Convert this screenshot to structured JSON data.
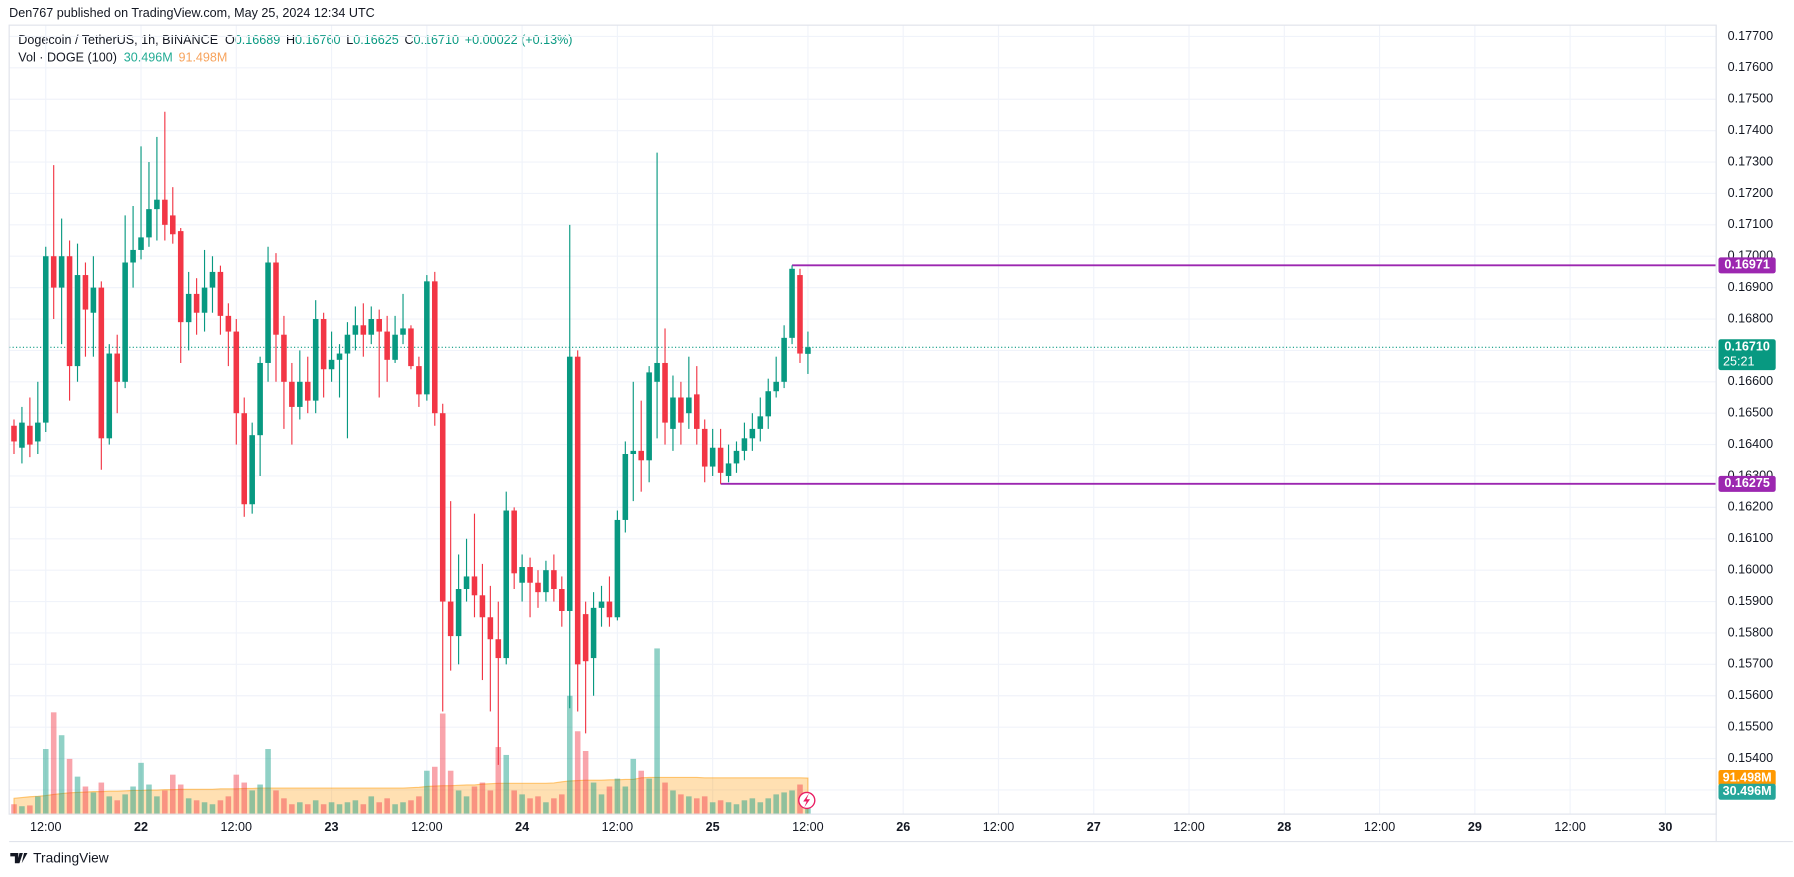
{
  "chart_data": {
    "type": "candlestick",
    "publisher": "Den767 published on TradingView.com, May 25, 2024 12:34 UTC",
    "symbol": "Dogecoin / TetherUS, 1h, BINANCE",
    "ohlc_legend": [
      {
        "label": "O",
        "value": "0.16689"
      },
      {
        "label": "H",
        "value": "0.16760"
      },
      {
        "label": "L",
        "value": "0.16625"
      },
      {
        "label": "C",
        "value": "0.16710"
      }
    ],
    "change": "+0.00022 (+0.13%)",
    "volume_title": "Vol · DOGE (100)",
    "volume_label": "30.496M",
    "volume_ma_label": "91.498M",
    "footer": "TradingView",
    "up_color": "#089981",
    "down_color": "#f23645",
    "level_color": "#9c27b0",
    "ma_color": "#ff9800",
    "grid": true,
    "xlim": [
      7.39,
      222.4
    ],
    "xticks": [
      {
        "value": 12,
        "label": "12:00"
      },
      {
        "value": 24,
        "label": "22"
      },
      {
        "value": 36,
        "label": "12:00"
      },
      {
        "value": 48,
        "label": "23"
      },
      {
        "value": 60,
        "label": "12:00"
      },
      {
        "value": 72,
        "label": "24"
      },
      {
        "value": 84,
        "label": "12:00"
      },
      {
        "value": 96,
        "label": "25"
      },
      {
        "value": 108,
        "label": "12:00"
      },
      {
        "value": 120,
        "label": "26"
      },
      {
        "value": 132,
        "label": "12:00"
      },
      {
        "value": 144,
        "label": "27"
      },
      {
        "value": 156,
        "label": "12:00"
      },
      {
        "value": 168,
        "label": "28"
      },
      {
        "value": 180,
        "label": "12:00"
      },
      {
        "value": 192,
        "label": "29"
      },
      {
        "value": 204,
        "label": "12:00"
      },
      {
        "value": 216,
        "label": "30"
      }
    ],
    "ylim": [
      0.15223,
      0.17736
    ],
    "yticks": [
      {
        "value": 0.153,
        "label": "0.15300"
      },
      {
        "value": 0.154,
        "label": "0.15400"
      },
      {
        "value": 0.155,
        "label": "0.15500"
      },
      {
        "value": 0.156,
        "label": "0.15600"
      },
      {
        "value": 0.157,
        "label": "0.15700"
      },
      {
        "value": 0.158,
        "label": "0.15800"
      },
      {
        "value": 0.159,
        "label": "0.15900"
      },
      {
        "value": 0.16,
        "label": "0.16000"
      },
      {
        "value": 0.161,
        "label": "0.16100"
      },
      {
        "value": 0.162,
        "label": "0.16200"
      },
      {
        "value": 0.163,
        "label": "0.16300"
      },
      {
        "value": 0.164,
        "label": "0.16400"
      },
      {
        "value": 0.165,
        "label": "0.16500"
      },
      {
        "value": 0.166,
        "label": "0.16600"
      },
      {
        "value": 0.167,
        "label": "0.16700"
      },
      {
        "value": 0.168,
        "label": "0.16800"
      },
      {
        "value": 0.169,
        "label": "0.16900"
      },
      {
        "value": 0.17,
        "label": "0.17000"
      },
      {
        "value": 0.171,
        "label": "0.17100"
      },
      {
        "value": 0.172,
        "label": "0.17200"
      },
      {
        "value": 0.173,
        "label": "0.17300"
      },
      {
        "value": 0.174,
        "label": "0.17400"
      },
      {
        "value": 0.175,
        "label": "0.17500"
      },
      {
        "value": 0.176,
        "label": "0.17600"
      },
      {
        "value": 0.177,
        "label": "0.17700"
      }
    ],
    "vlim": [
      0,
      2000
    ],
    "last_price": {
      "value": 0.1671,
      "label": "0.16710",
      "countdown": "25:21"
    },
    "levels": [
      {
        "value": 0.16971,
        "label": "0.16971",
        "x": 106
      },
      {
        "value": 0.16275,
        "label": "0.16275",
        "x": 97
      }
    ],
    "x": [
      8,
      9,
      10,
      11,
      12,
      13,
      14,
      15,
      16,
      17,
      18,
      19,
      20,
      21,
      22,
      23,
      24,
      25,
      26,
      27,
      28,
      29,
      30,
      31,
      32,
      33,
      34,
      35,
      36,
      37,
      38,
      39,
      40,
      41,
      42,
      43,
      44,
      45,
      46,
      47,
      48,
      49,
      50,
      51,
      52,
      53,
      54,
      55,
      56,
      57,
      58,
      59,
      60,
      61,
      62,
      63,
      64,
      65,
      66,
      67,
      68,
      69,
      70,
      71,
      72,
      73,
      74,
      75,
      76,
      77,
      78,
      79,
      80,
      81,
      82,
      83,
      84,
      85,
      86,
      87,
      88,
      89,
      90,
      91,
      92,
      93,
      94,
      95,
      96,
      97,
      98,
      99,
      100,
      101,
      102,
      103,
      104,
      105,
      106,
      107,
      108
    ],
    "ohlc": [
      [
        0.1646,
        0.1648,
        0.1637,
        0.1641
      ],
      [
        0.1639,
        0.1652,
        0.1634,
        0.1647
      ],
      [
        0.1646,
        0.1655,
        0.1636,
        0.164
      ],
      [
        0.1641,
        0.166,
        0.1637,
        0.1647
      ],
      [
        0.1647,
        0.1703,
        0.1644,
        0.17
      ],
      [
        0.17,
        0.1729,
        0.168,
        0.169
      ],
      [
        0.169,
        0.1712,
        0.1672,
        0.17
      ],
      [
        0.17,
        0.1705,
        0.1654,
        0.1665
      ],
      [
        0.1665,
        0.1704,
        0.166,
        0.1694
      ],
      [
        0.1694,
        0.1698,
        0.1668,
        0.1683
      ],
      [
        0.1682,
        0.17,
        0.1668,
        0.169
      ],
      [
        0.169,
        0.1692,
        0.1632,
        0.1642
      ],
      [
        0.1642,
        0.1672,
        0.164,
        0.1669
      ],
      [
        0.1669,
        0.1675,
        0.165,
        0.166
      ],
      [
        0.166,
        0.1713,
        0.1658,
        0.1698
      ],
      [
        0.1698,
        0.1716,
        0.169,
        0.1702
      ],
      [
        0.1702,
        0.1735,
        0.1699,
        0.1706
      ],
      [
        0.1706,
        0.173,
        0.1703,
        0.1715
      ],
      [
        0.1715,
        0.1738,
        0.1705,
        0.1718
      ],
      [
        0.1718,
        0.1746,
        0.1705,
        0.171
      ],
      [
        0.1713,
        0.1722,
        0.1704,
        0.1707
      ],
      [
        0.1708,
        0.1709,
        0.1666,
        0.1679
      ],
      [
        0.1679,
        0.1695,
        0.167,
        0.1688
      ],
      [
        0.1688,
        0.1693,
        0.1675,
        0.1682
      ],
      [
        0.1682,
        0.1702,
        0.1676,
        0.169
      ],
      [
        0.169,
        0.17,
        0.1682,
        0.1695
      ],
      [
        0.1695,
        0.1697,
        0.1675,
        0.1681
      ],
      [
        0.1681,
        0.1685,
        0.1665,
        0.1676
      ],
      [
        0.1676,
        0.168,
        0.164,
        0.165
      ],
      [
        0.165,
        0.1655,
        0.1617,
        0.1621
      ],
      [
        0.1621,
        0.1647,
        0.1618,
        0.1643
      ],
      [
        0.1643,
        0.1668,
        0.163,
        0.1666
      ],
      [
        0.1666,
        0.1703,
        0.166,
        0.1698
      ],
      [
        0.1698,
        0.1701,
        0.166,
        0.1675
      ],
      [
        0.1675,
        0.1681,
        0.1645,
        0.166
      ],
      [
        0.166,
        0.1666,
        0.164,
        0.1652
      ],
      [
        0.1652,
        0.167,
        0.1648,
        0.166
      ],
      [
        0.166,
        0.1668,
        0.165,
        0.1654
      ],
      [
        0.1654,
        0.1686,
        0.165,
        0.168
      ],
      [
        0.168,
        0.1682,
        0.1655,
        0.1664
      ],
      [
        0.1664,
        0.1676,
        0.166,
        0.1667
      ],
      [
        0.1667,
        0.1672,
        0.1655,
        0.1669
      ],
      [
        0.1669,
        0.1679,
        0.1642,
        0.1675
      ],
      [
        0.1675,
        0.1684,
        0.167,
        0.1678
      ],
      [
        0.1678,
        0.1685,
        0.1668,
        0.1675
      ],
      [
        0.1675,
        0.1684,
        0.1672,
        0.168
      ],
      [
        0.168,
        0.1683,
        0.1655,
        0.1676
      ],
      [
        0.1676,
        0.1681,
        0.166,
        0.1667
      ],
      [
        0.1667,
        0.1681,
        0.1666,
        0.1675
      ],
      [
        0.1675,
        0.1688,
        0.1672,
        0.1677
      ],
      [
        0.1677,
        0.1678,
        0.1664,
        0.1665
      ],
      [
        0.1665,
        0.1668,
        0.1652,
        0.1656
      ],
      [
        0.1656,
        0.1694,
        0.1654,
        0.1692
      ],
      [
        0.1692,
        0.1695,
        0.1646,
        0.165
      ],
      [
        0.165,
        0.1653,
        0.1555,
        0.159
      ],
      [
        0.159,
        0.1622,
        0.1568,
        0.1579
      ],
      [
        0.1579,
        0.1605,
        0.157,
        0.1594
      ],
      [
        0.1594,
        0.161,
        0.159,
        0.1598
      ],
      [
        0.1598,
        0.1618,
        0.1585,
        0.1592
      ],
      [
        0.1592,
        0.1602,
        0.1565,
        0.1585
      ],
      [
        0.1585,
        0.1595,
        0.1555,
        0.1578
      ],
      [
        0.1578,
        0.159,
        0.1538,
        0.1572
      ],
      [
        0.1572,
        0.1625,
        0.157,
        0.1619
      ],
      [
        0.1619,
        0.162,
        0.1594,
        0.1599
      ],
      [
        0.1596,
        0.1605,
        0.159,
        0.1601
      ],
      [
        0.1601,
        0.1604,
        0.1585,
        0.1596
      ],
      [
        0.1596,
        0.16,
        0.1588,
        0.1593
      ],
      [
        0.1593,
        0.1603,
        0.159,
        0.16
      ],
      [
        0.16,
        0.1605,
        0.159,
        0.1594
      ],
      [
        0.1594,
        0.1598,
        0.1582,
        0.1587
      ],
      [
        0.1587,
        0.171,
        0.1556,
        0.1668
      ],
      [
        0.1668,
        0.167,
        0.1555,
        0.157
      ],
      [
        0.1586,
        0.159,
        0.1548,
        0.1571
      ],
      [
        0.1572,
        0.1593,
        0.156,
        0.1588
      ],
      [
        0.1588,
        0.1595,
        0.1582,
        0.159
      ],
      [
        0.159,
        0.1598,
        0.1582,
        0.1585
      ],
      [
        0.1585,
        0.1619,
        0.1584,
        0.1616
      ],
      [
        0.1616,
        0.1641,
        0.1612,
        0.1637
      ],
      [
        0.1637,
        0.166,
        0.1622,
        0.1638
      ],
      [
        0.1638,
        0.1654,
        0.1625,
        0.1635
      ],
      [
        0.1635,
        0.1665,
        0.1628,
        0.1663
      ],
      [
        0.166,
        0.1733,
        0.1642,
        0.1666
      ],
      [
        0.1666,
        0.1677,
        0.164,
        0.1647
      ],
      [
        0.1645,
        0.1662,
        0.1638,
        0.1655
      ],
      [
        0.1655,
        0.166,
        0.164,
        0.1647
      ],
      [
        0.165,
        0.1668,
        0.1645,
        0.1655
      ],
      [
        0.1656,
        0.1665,
        0.164,
        0.1645
      ],
      [
        0.1645,
        0.1648,
        0.1628,
        0.1633
      ],
      [
        0.1633,
        0.1645,
        0.163,
        0.1639
      ],
      [
        0.1639,
        0.1645,
        0.16275,
        0.1631
      ],
      [
        0.163,
        0.164,
        0.1628,
        0.1634
      ],
      [
        0.1634,
        0.1641,
        0.1631,
        0.1638
      ],
      [
        0.1638,
        0.1647,
        0.1635,
        0.1642
      ],
      [
        0.1642,
        0.165,
        0.1638,
        0.1645
      ],
      [
        0.1645,
        0.1655,
        0.1641,
        0.1649
      ],
      [
        0.1649,
        0.1661,
        0.1645,
        0.1657
      ],
      [
        0.1657,
        0.1668,
        0.1655,
        0.166
      ],
      [
        0.166,
        0.1678,
        0.1658,
        0.1674
      ],
      [
        0.1674,
        0.16971,
        0.1672,
        0.1696
      ],
      [
        0.1694,
        0.1696,
        0.1666,
        0.1669
      ],
      [
        0.16689,
        0.1676,
        0.16625,
        0.1671
      ]
    ],
    "volume": [
      25,
      20,
      22,
      45,
      165,
      258,
      200,
      140,
      95,
      70,
      55,
      80,
      45,
      35,
      50,
      70,
      130,
      75,
      45,
      60,
      100,
      75,
      40,
      35,
      30,
      25,
      35,
      45,
      100,
      80,
      60,
      75,
      165,
      60,
      40,
      25,
      30,
      25,
      35,
      25,
      30,
      25,
      30,
      35,
      25,
      45,
      30,
      40,
      25,
      30,
      35,
      45,
      110,
      120,
      255,
      110,
      60,
      45,
      70,
      80,
      60,
      170,
      150,
      60,
      50,
      40,
      45,
      30,
      40,
      50,
      300,
      210,
      160,
      80,
      50,
      70,
      90,
      70,
      140,
      110,
      90,
      420,
      80,
      60,
      50,
      45,
      40,
      45,
      30,
      35,
      30,
      25,
      35,
      40,
      30,
      40,
      50,
      55,
      60,
      75,
      30.496
    ],
    "volume_ma": [
      40,
      42,
      44,
      45,
      47,
      50,
      52,
      54,
      55,
      56,
      57,
      57,
      58,
      58,
      59,
      60,
      60,
      61,
      61,
      62,
      62,
      63,
      63,
      63,
      63,
      63,
      64,
      64,
      64,
      65,
      65,
      66,
      66,
      66,
      66,
      66,
      66,
      66,
      66,
      66,
      66,
      66,
      66,
      66,
      66,
      66,
      66,
      66,
      66,
      66,
      67,
      68,
      70,
      71,
      72,
      72,
      73,
      74,
      74,
      76,
      77,
      78,
      78,
      78,
      78,
      78,
      78,
      78,
      79,
      82,
      84,
      85,
      86,
      86,
      86,
      87,
      87,
      88,
      88,
      92,
      93,
      93,
      93,
      93,
      93,
      93,
      93,
      92,
      92,
      92,
      92,
      92,
      92,
      92,
      92,
      92,
      92,
      92,
      92,
      92,
      91.498
    ]
  }
}
